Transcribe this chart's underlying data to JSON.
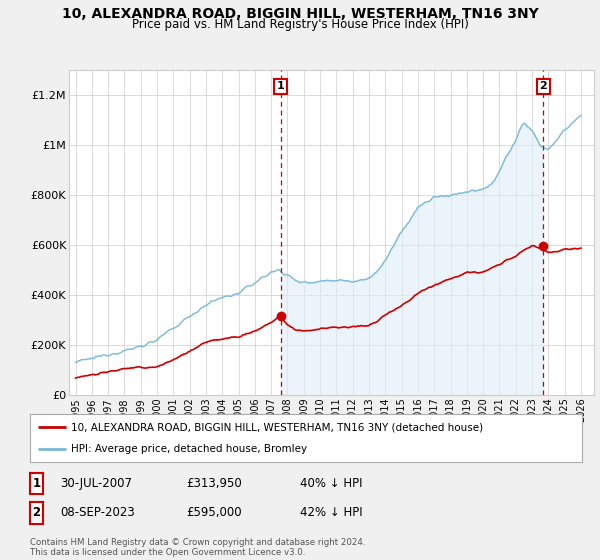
{
  "title": "10, ALEXANDRA ROAD, BIGGIN HILL, WESTERHAM, TN16 3NY",
  "subtitle": "Price paid vs. HM Land Registry's House Price Index (HPI)",
  "background_color": "#f0f0f0",
  "plot_background": "#ffffff",
  "hpi_color": "#7ab8d9",
  "hpi_fill_color": "#ddeef7",
  "price_color": "#cc0000",
  "ylim": [
    0,
    1300000
  ],
  "yticks": [
    0,
    200000,
    400000,
    600000,
    800000,
    1000000,
    1200000
  ],
  "ytick_labels": [
    "£0",
    "£200K",
    "£400K",
    "£600K",
    "£800K",
    "£1M",
    "£1.2M"
  ],
  "marker1_year": 2007.58,
  "marker1_price": 313950,
  "marker2_year": 2023.69,
  "marker2_price": 595000,
  "legend_text1": "10, ALEXANDRA ROAD, BIGGIN HILL, WESTERHAM, TN16 3NY (detached house)",
  "legend_text2": "HPI: Average price, detached house, Bromley",
  "table_row1": [
    "1",
    "30-JUL-2007",
    "£313,950",
    "40% ↓ HPI"
  ],
  "table_row2": [
    "2",
    "08-SEP-2023",
    "£595,000",
    "42% ↓ HPI"
  ],
  "footnote": "Contains HM Land Registry data © Crown copyright and database right 2024.\nThis data is licensed under the Open Government Licence v3.0."
}
